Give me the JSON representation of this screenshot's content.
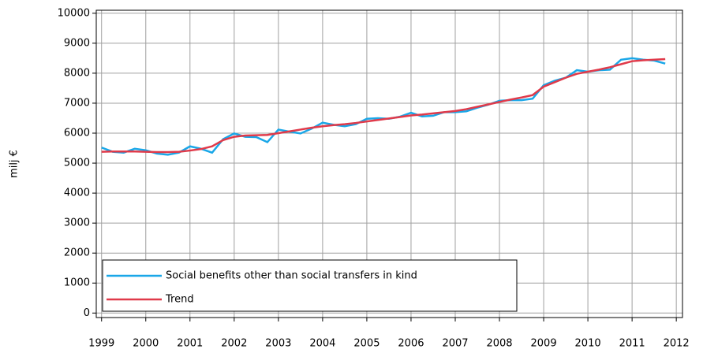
{
  "chart_data": {
    "type": "line",
    "y_label": "milj €",
    "x": [
      1999,
      1999.25,
      1999.5,
      1999.75,
      2000,
      2000.25,
      2000.5,
      2000.75,
      2001,
      2001.25,
      2001.5,
      2001.75,
      2002,
      2002.25,
      2002.5,
      2002.75,
      2003,
      2003.25,
      2003.5,
      2003.75,
      2004,
      2004.25,
      2004.5,
      2004.75,
      2005,
      2005.25,
      2005.5,
      2005.75,
      2006,
      2006.25,
      2006.5,
      2006.75,
      2007,
      2007.25,
      2007.5,
      2007.75,
      2008,
      2008.25,
      2008.5,
      2008.75,
      2009,
      2009.25,
      2009.5,
      2009.75,
      2010,
      2010.25,
      2010.5,
      2010.75,
      2011,
      2011.25,
      2011.5,
      2011.75
    ],
    "series": [
      {
        "name": "Social benefits other than social transfers in kind",
        "color": "#1aa7e8",
        "values": [
          5520,
          5380,
          5350,
          5480,
          5430,
          5320,
          5280,
          5350,
          5560,
          5480,
          5350,
          5800,
          5990,
          5880,
          5870,
          5700,
          6120,
          6050,
          5990,
          6150,
          6350,
          6280,
          6230,
          6300,
          6480,
          6500,
          6480,
          6550,
          6680,
          6560,
          6580,
          6700,
          6700,
          6730,
          6850,
          6950,
          7080,
          7100,
          7100,
          7150,
          7600,
          7750,
          7850,
          8100,
          8050,
          8100,
          8120,
          8450,
          8500,
          8450,
          8420,
          8320
        ]
      },
      {
        "name": "Trend",
        "color": "#e03a4a",
        "values": [
          5380,
          5390,
          5390,
          5390,
          5380,
          5370,
          5370,
          5380,
          5420,
          5470,
          5560,
          5770,
          5880,
          5920,
          5930,
          5940,
          6000,
          6060,
          6120,
          6180,
          6230,
          6270,
          6300,
          6340,
          6390,
          6440,
          6490,
          6540,
          6590,
          6620,
          6660,
          6700,
          6740,
          6800,
          6880,
          6960,
          7040,
          7120,
          7190,
          7270,
          7550,
          7700,
          7850,
          7980,
          8050,
          8120,
          8200,
          8300,
          8400,
          8430,
          8450,
          8470
        ]
      }
    ],
    "xlim": [
      1998.88,
      2012.14
    ],
    "xticks": [
      1999,
      2000,
      2001,
      2002,
      2003,
      2004,
      2005,
      2006,
      2007,
      2008,
      2009,
      2010,
      2011,
      2012
    ],
    "ylim": [
      -150,
      10100
    ],
    "yticks": [
      0,
      1000,
      2000,
      3000,
      4000,
      5000,
      6000,
      7000,
      8000,
      9000,
      10000
    ],
    "grid": true,
    "legend": "lower left"
  }
}
